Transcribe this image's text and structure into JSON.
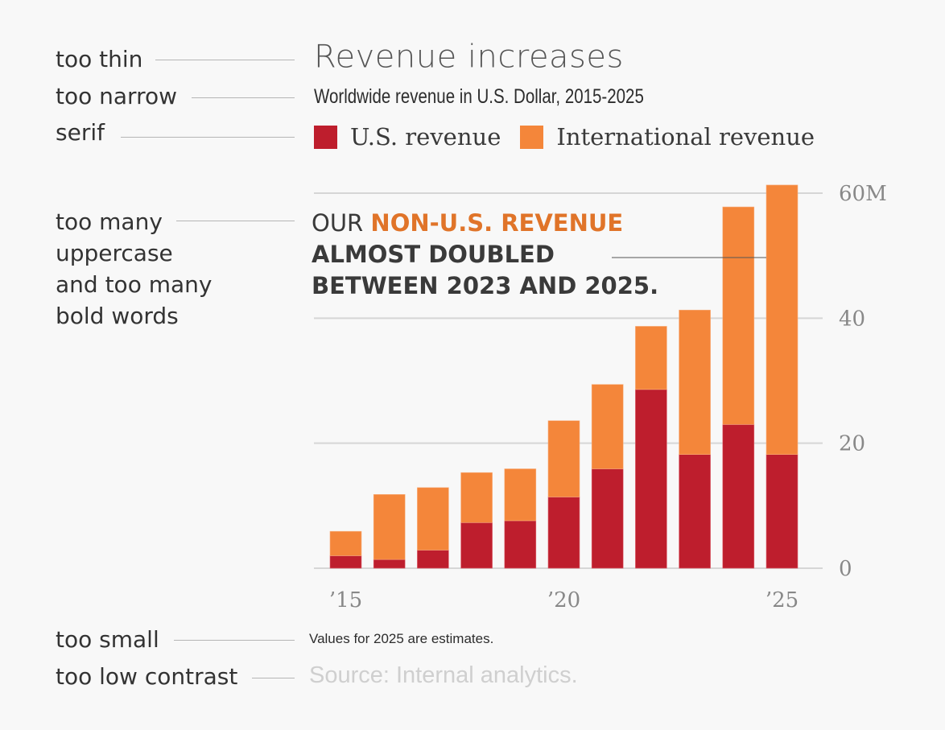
{
  "critique_labels": [
    {
      "id": "too-thin",
      "text": "too thin"
    },
    {
      "id": "too-narrow",
      "text": "too narrow"
    },
    {
      "id": "serif",
      "text": "serif"
    },
    {
      "id": "uppercase-bold",
      "lines": [
        "too many",
        "uppercase",
        "and too many",
        "bold words"
      ]
    },
    {
      "id": "too-small",
      "text": "too small"
    },
    {
      "id": "low-contrast",
      "text": "too low contrast"
    }
  ],
  "annotation": {
    "line1_plain": "OUR ",
    "line1_highlight": "NON-U.S. REVENUE",
    "line2": "ALMOST DOUBLED",
    "line3": "BETWEEN 2023 AND 2025."
  },
  "note": "Values for 2025 are estimates.",
  "source": "Source: Internal analytics.",
  "colors": {
    "us": "#be1e2d",
    "international": "#f4863a",
    "highlight_text": "#e07429",
    "gridline": "#d6d6d6",
    "tick_text": "#888888"
  },
  "chart_data": {
    "type": "bar",
    "stacked": true,
    "title": "Revenue increases",
    "subtitle": "Worldwide revenue in U.S. Dollar, 2015-2025",
    "categories": [
      "2015",
      "2016",
      "2017",
      "2018",
      "2019",
      "2020",
      "2021",
      "2022",
      "2023",
      "2024",
      "2025"
    ],
    "x_tick_labels": [
      {
        "category": "2015",
        "label": "’15"
      },
      {
        "category": "2020",
        "label": "’20"
      },
      {
        "category": "2025",
        "label": "’25"
      }
    ],
    "series": [
      {
        "name": "U.S. revenue",
        "values": [
          2.0,
          1.4,
          2.9,
          7.3,
          7.6,
          11.4,
          15.9,
          28.6,
          18.2,
          23.0,
          18.2
        ]
      },
      {
        "name": "International revenue",
        "values": [
          3.9,
          10.4,
          10.0,
          8.0,
          8.3,
          12.2,
          13.5,
          10.1,
          23.1,
          34.8,
          43.1
        ]
      }
    ],
    "totals": [
      5.9,
      11.8,
      12.9,
      15.3,
      15.9,
      23.6,
      29.4,
      38.7,
      41.3,
      57.8,
      61.3
    ],
    "y_ticks": [
      {
        "value": 0,
        "label": "0"
      },
      {
        "value": 20,
        "label": "20"
      },
      {
        "value": 40,
        "label": "40"
      },
      {
        "value": 60,
        "label": "60M"
      }
    ],
    "ylim": [
      0,
      60
    ],
    "y_axis_position": "right",
    "grid": true,
    "legend": {
      "position": "top-left",
      "entries": [
        "U.S. revenue",
        "International revenue"
      ]
    },
    "xlabel": "",
    "ylabel": ""
  }
}
